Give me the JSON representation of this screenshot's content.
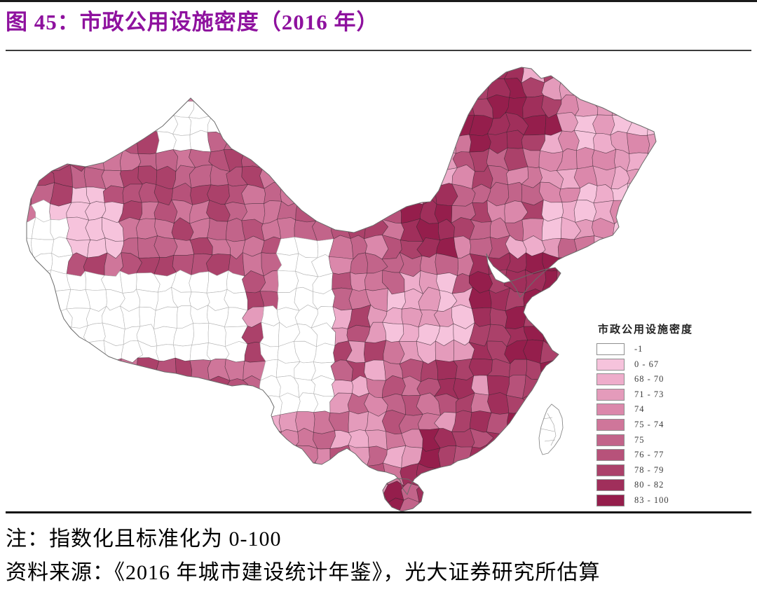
{
  "page": {
    "title": "图 45：市政公用设施密度（2016 年）",
    "title_color": "#8e119e",
    "note": "注：指数化且标准化为 0-100",
    "source": "资料来源：《2016 年城市建设统计年鉴》，光大证券研究所估算"
  },
  "chart_data": {
    "type": "choropleth-map",
    "title": "市政公用设施密度（2016 年）",
    "geography": "中国（地级行政区划）",
    "legend_title": "市政公用设施密度",
    "no_data_class": "-1",
    "classes": [
      {
        "label": "-1",
        "color": "#ffffff"
      },
      {
        "label": "0 - 67",
        "color": "#f6c3dc"
      },
      {
        "label": "68 - 70",
        "color": "#eeadcb"
      },
      {
        "label": "71 - 73",
        "color": "#e49bbb"
      },
      {
        "label": "74",
        "color": "#db88ab"
      },
      {
        "label": "75 - 74",
        "color": "#cf769a"
      },
      {
        "label": "75",
        "color": "#c2648a"
      },
      {
        "label": "76 - 77",
        "color": "#b7527a"
      },
      {
        "label": "78 - 79",
        "color": "#ab416a"
      },
      {
        "label": "80 - 82",
        "color": "#a02f5b"
      },
      {
        "label": "83 - 100",
        "color": "#951e4c"
      }
    ],
    "legend_position": "right-middle",
    "pattern_notes": "最深色集中于东部沿海（山东—江苏—浙江—福建—珠三角）、内蒙古中部及呼伦贝尔；黑龙江东部、华北平原中部与和田地区色浅；西藏北部、川西、南疆与青海西部为白色（无数据 -1）；台湾为白色轮廓"
  }
}
